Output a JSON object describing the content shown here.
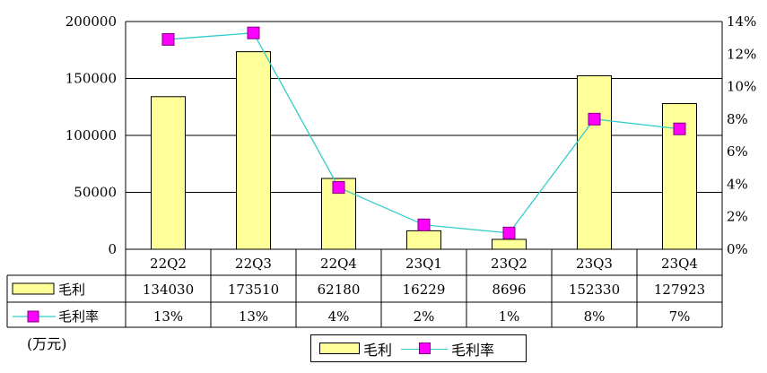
{
  "chart_data": {
    "type": "bar",
    "categories": [
      "22Q2",
      "22Q3",
      "22Q4",
      "23Q1",
      "23Q2",
      "23Q3",
      "23Q4"
    ],
    "series": [
      {
        "name": "毛利",
        "type": "bar",
        "axis": "left",
        "values": [
          134030,
          173510,
          62180,
          16229,
          8696,
          152330,
          127923
        ],
        "labels": [
          "134030",
          "173510",
          "62180",
          "16229",
          "8696",
          "152330",
          "127923"
        ],
        "color": "#ffff99"
      },
      {
        "name": "毛利率",
        "type": "line",
        "axis": "right",
        "values": [
          12.9,
          13.3,
          3.8,
          1.5,
          1.0,
          8.0,
          7.4
        ],
        "labels": [
          "13%",
          "13%",
          "4%",
          "2%",
          "1%",
          "8%",
          "7%"
        ],
        "color": "#33cccc",
        "marker_color": "#ff00ff"
      }
    ],
    "y_left": {
      "ylim": [
        0,
        200000
      ],
      "ticks": [
        0,
        50000,
        100000,
        150000,
        200000
      ],
      "tick_labels": [
        "0",
        "50000",
        "100000",
        "150000",
        "200000"
      ]
    },
    "y_right": {
      "ylim": [
        0,
        14
      ],
      "ticks": [
        0,
        2,
        4,
        6,
        8,
        10,
        12,
        14
      ],
      "tick_labels": [
        "0%",
        "2%",
        "4%",
        "6%",
        "8%",
        "10%",
        "12%",
        "14%"
      ]
    },
    "grid": true,
    "data_table": true,
    "legend": "bottom-center",
    "unit_label": "(万元)"
  }
}
